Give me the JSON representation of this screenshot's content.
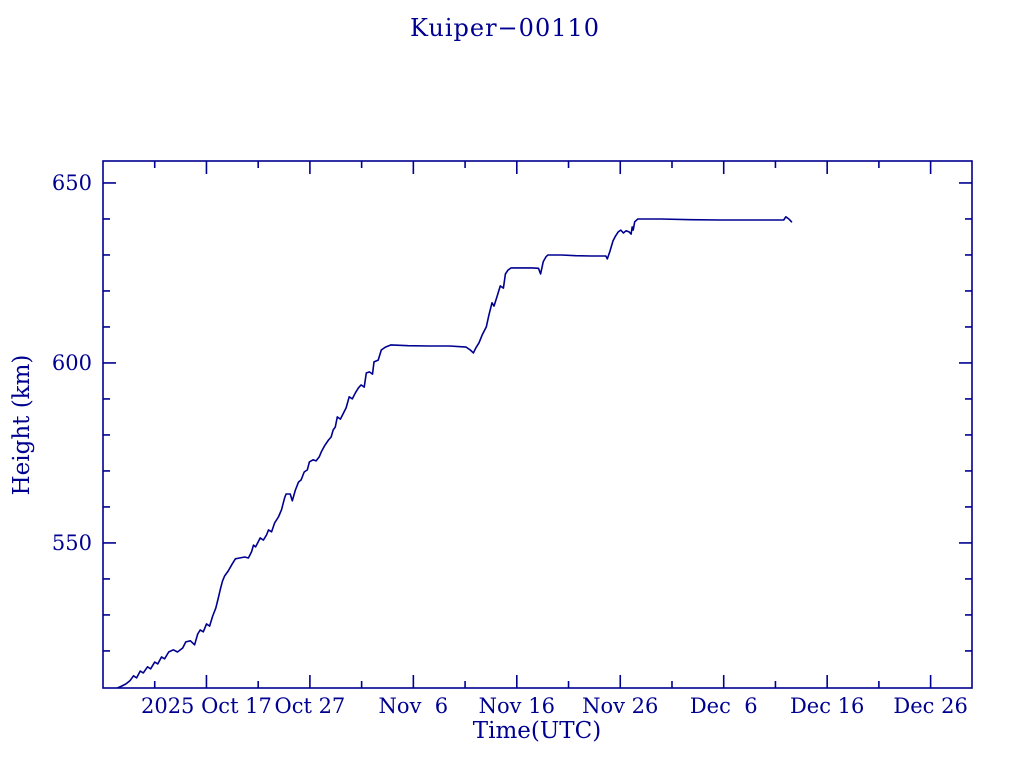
{
  "ink_color": "#000090",
  "background_color": "#ffffff",
  "title": "Kuiper−00110",
  "chart_data": {
    "type": "line",
    "title": "Kuiper−00110",
    "xlabel": "Time(UTC)",
    "ylabel": "Height (km)",
    "legend": "none",
    "grid": false,
    "line_color": "#000090",
    "x_axis": {
      "units": "days since 2025-10-07 (UTC)",
      "xlim": [
        0,
        84
      ],
      "major_ticks": [
        {
          "day": 10,
          "label": "2025 Oct 17"
        },
        {
          "day": 20,
          "label": "Oct 27"
        },
        {
          "day": 30,
          "label": "Nov  6"
        },
        {
          "day": 40,
          "label": "Nov 16"
        },
        {
          "day": 50,
          "label": "Nov 26"
        },
        {
          "day": 60,
          "label": "Dec  6"
        },
        {
          "day": 70,
          "label": "Dec 16"
        },
        {
          "day": 80,
          "label": "Dec 26"
        }
      ],
      "minor_ticks": [
        5,
        15,
        25,
        35,
        45,
        55,
        65,
        75
      ]
    },
    "y_axis": {
      "units": "km",
      "ylim": [
        509.7,
        656.1
      ],
      "major_ticks": [
        {
          "value": 550,
          "label": "550"
        },
        {
          "value": 600,
          "label": "600"
        },
        {
          "value": 650,
          "label": "650"
        }
      ],
      "minor_ticks": [
        520,
        530,
        540,
        560,
        570,
        580,
        590,
        610,
        620,
        630,
        640
      ]
    },
    "series": [
      {
        "name": "Kuiper-00110 height",
        "points": [
          [
            1.45,
            509.8
          ],
          [
            1.7,
            510.1
          ],
          [
            2.2,
            510.8
          ],
          [
            2.6,
            511.7
          ],
          [
            2.95,
            513.1
          ],
          [
            3.25,
            512.5
          ],
          [
            3.6,
            514.4
          ],
          [
            3.9,
            513.9
          ],
          [
            4.3,
            515.6
          ],
          [
            4.6,
            515.0
          ],
          [
            5.0,
            516.9
          ],
          [
            5.3,
            516.4
          ],
          [
            5.65,
            518.3
          ],
          [
            5.95,
            517.8
          ],
          [
            6.35,
            519.7
          ],
          [
            6.8,
            520.3
          ],
          [
            7.2,
            519.7
          ],
          [
            7.7,
            520.8
          ],
          [
            8.0,
            522.5
          ],
          [
            8.45,
            522.8
          ],
          [
            8.85,
            521.7
          ],
          [
            9.15,
            524.7
          ],
          [
            9.4,
            525.8
          ],
          [
            9.7,
            525.3
          ],
          [
            10.0,
            527.5
          ],
          [
            10.3,
            526.9
          ],
          [
            10.6,
            529.7
          ],
          [
            10.9,
            531.9
          ],
          [
            11.15,
            534.7
          ],
          [
            11.35,
            537.2
          ],
          [
            11.55,
            539.4
          ],
          [
            11.75,
            540.8
          ],
          [
            12.1,
            542.2
          ],
          [
            12.5,
            544.2
          ],
          [
            12.8,
            545.6
          ],
          [
            13.2,
            545.8
          ],
          [
            13.7,
            546.1
          ],
          [
            14.05,
            545.8
          ],
          [
            14.35,
            547.5
          ],
          [
            14.55,
            549.4
          ],
          [
            14.75,
            548.9
          ],
          [
            15.0,
            550.3
          ],
          [
            15.2,
            551.4
          ],
          [
            15.5,
            550.8
          ],
          [
            15.8,
            552.2
          ],
          [
            16.0,
            553.6
          ],
          [
            16.3,
            553.1
          ],
          [
            16.6,
            555.6
          ],
          [
            16.95,
            557.2
          ],
          [
            17.25,
            559.2
          ],
          [
            17.55,
            562.5
          ],
          [
            17.7,
            563.6
          ],
          [
            18.1,
            563.6
          ],
          [
            18.3,
            561.7
          ],
          [
            18.6,
            564.7
          ],
          [
            18.9,
            566.9
          ],
          [
            19.15,
            567.5
          ],
          [
            19.45,
            569.7
          ],
          [
            19.75,
            570.3
          ],
          [
            19.95,
            572.5
          ],
          [
            20.3,
            573.1
          ],
          [
            20.6,
            572.8
          ],
          [
            20.9,
            573.9
          ],
          [
            21.1,
            575.3
          ],
          [
            21.4,
            576.9
          ],
          [
            21.8,
            578.6
          ],
          [
            22.05,
            579.4
          ],
          [
            22.25,
            581.4
          ],
          [
            22.45,
            582.2
          ],
          [
            22.65,
            585.0
          ],
          [
            22.95,
            584.4
          ],
          [
            23.25,
            586.1
          ],
          [
            23.5,
            587.5
          ],
          [
            23.8,
            590.6
          ],
          [
            24.1,
            590.0
          ],
          [
            24.4,
            591.7
          ],
          [
            24.7,
            593.1
          ],
          [
            24.95,
            593.9
          ],
          [
            25.25,
            593.3
          ],
          [
            25.45,
            597.2
          ],
          [
            25.75,
            597.5
          ],
          [
            26.05,
            596.9
          ],
          [
            26.2,
            600.3
          ],
          [
            26.6,
            600.8
          ],
          [
            26.9,
            603.6
          ],
          [
            27.3,
            604.4
          ],
          [
            27.85,
            605.0
          ],
          [
            29.5,
            604.8
          ],
          [
            31.5,
            604.7
          ],
          [
            33.5,
            604.7
          ],
          [
            35.1,
            604.4
          ],
          [
            35.5,
            603.6
          ],
          [
            35.8,
            602.8
          ],
          [
            36.05,
            604.2
          ],
          [
            36.35,
            605.6
          ],
          [
            36.65,
            607.8
          ],
          [
            37.05,
            610.0
          ],
          [
            37.3,
            613.3
          ],
          [
            37.6,
            616.7
          ],
          [
            37.8,
            615.8
          ],
          [
            38.1,
            618.6
          ],
          [
            38.4,
            621.4
          ],
          [
            38.7,
            620.8
          ],
          [
            38.9,
            624.7
          ],
          [
            39.15,
            625.8
          ],
          [
            39.45,
            626.4
          ],
          [
            40.5,
            626.4
          ],
          [
            41.5,
            626.4
          ],
          [
            42.1,
            626.3
          ],
          [
            42.3,
            624.7
          ],
          [
            42.55,
            628.1
          ],
          [
            42.8,
            629.4
          ],
          [
            43.0,
            630.0
          ],
          [
            44.3,
            630.0
          ],
          [
            45.7,
            629.8
          ],
          [
            47.2,
            629.7
          ],
          [
            48.6,
            629.7
          ],
          [
            48.75,
            628.9
          ],
          [
            49.0,
            631.0
          ],
          [
            49.3,
            633.9
          ],
          [
            49.55,
            635.3
          ],
          [
            49.8,
            636.4
          ],
          [
            50.05,
            636.9
          ],
          [
            50.3,
            636.1
          ],
          [
            50.55,
            636.7
          ],
          [
            50.85,
            636.4
          ],
          [
            51.05,
            635.8
          ],
          [
            51.15,
            637.8
          ],
          [
            51.25,
            636.9
          ],
          [
            51.4,
            639.2
          ],
          [
            51.7,
            640.0
          ],
          [
            53.9,
            640.0
          ],
          [
            56.8,
            639.8
          ],
          [
            59.7,
            639.7
          ],
          [
            62.6,
            639.7
          ],
          [
            65.0,
            639.7
          ],
          [
            65.8,
            639.7
          ],
          [
            66.0,
            640.6
          ],
          [
            66.3,
            640.0
          ],
          [
            66.55,
            639.2
          ]
        ]
      }
    ]
  }
}
